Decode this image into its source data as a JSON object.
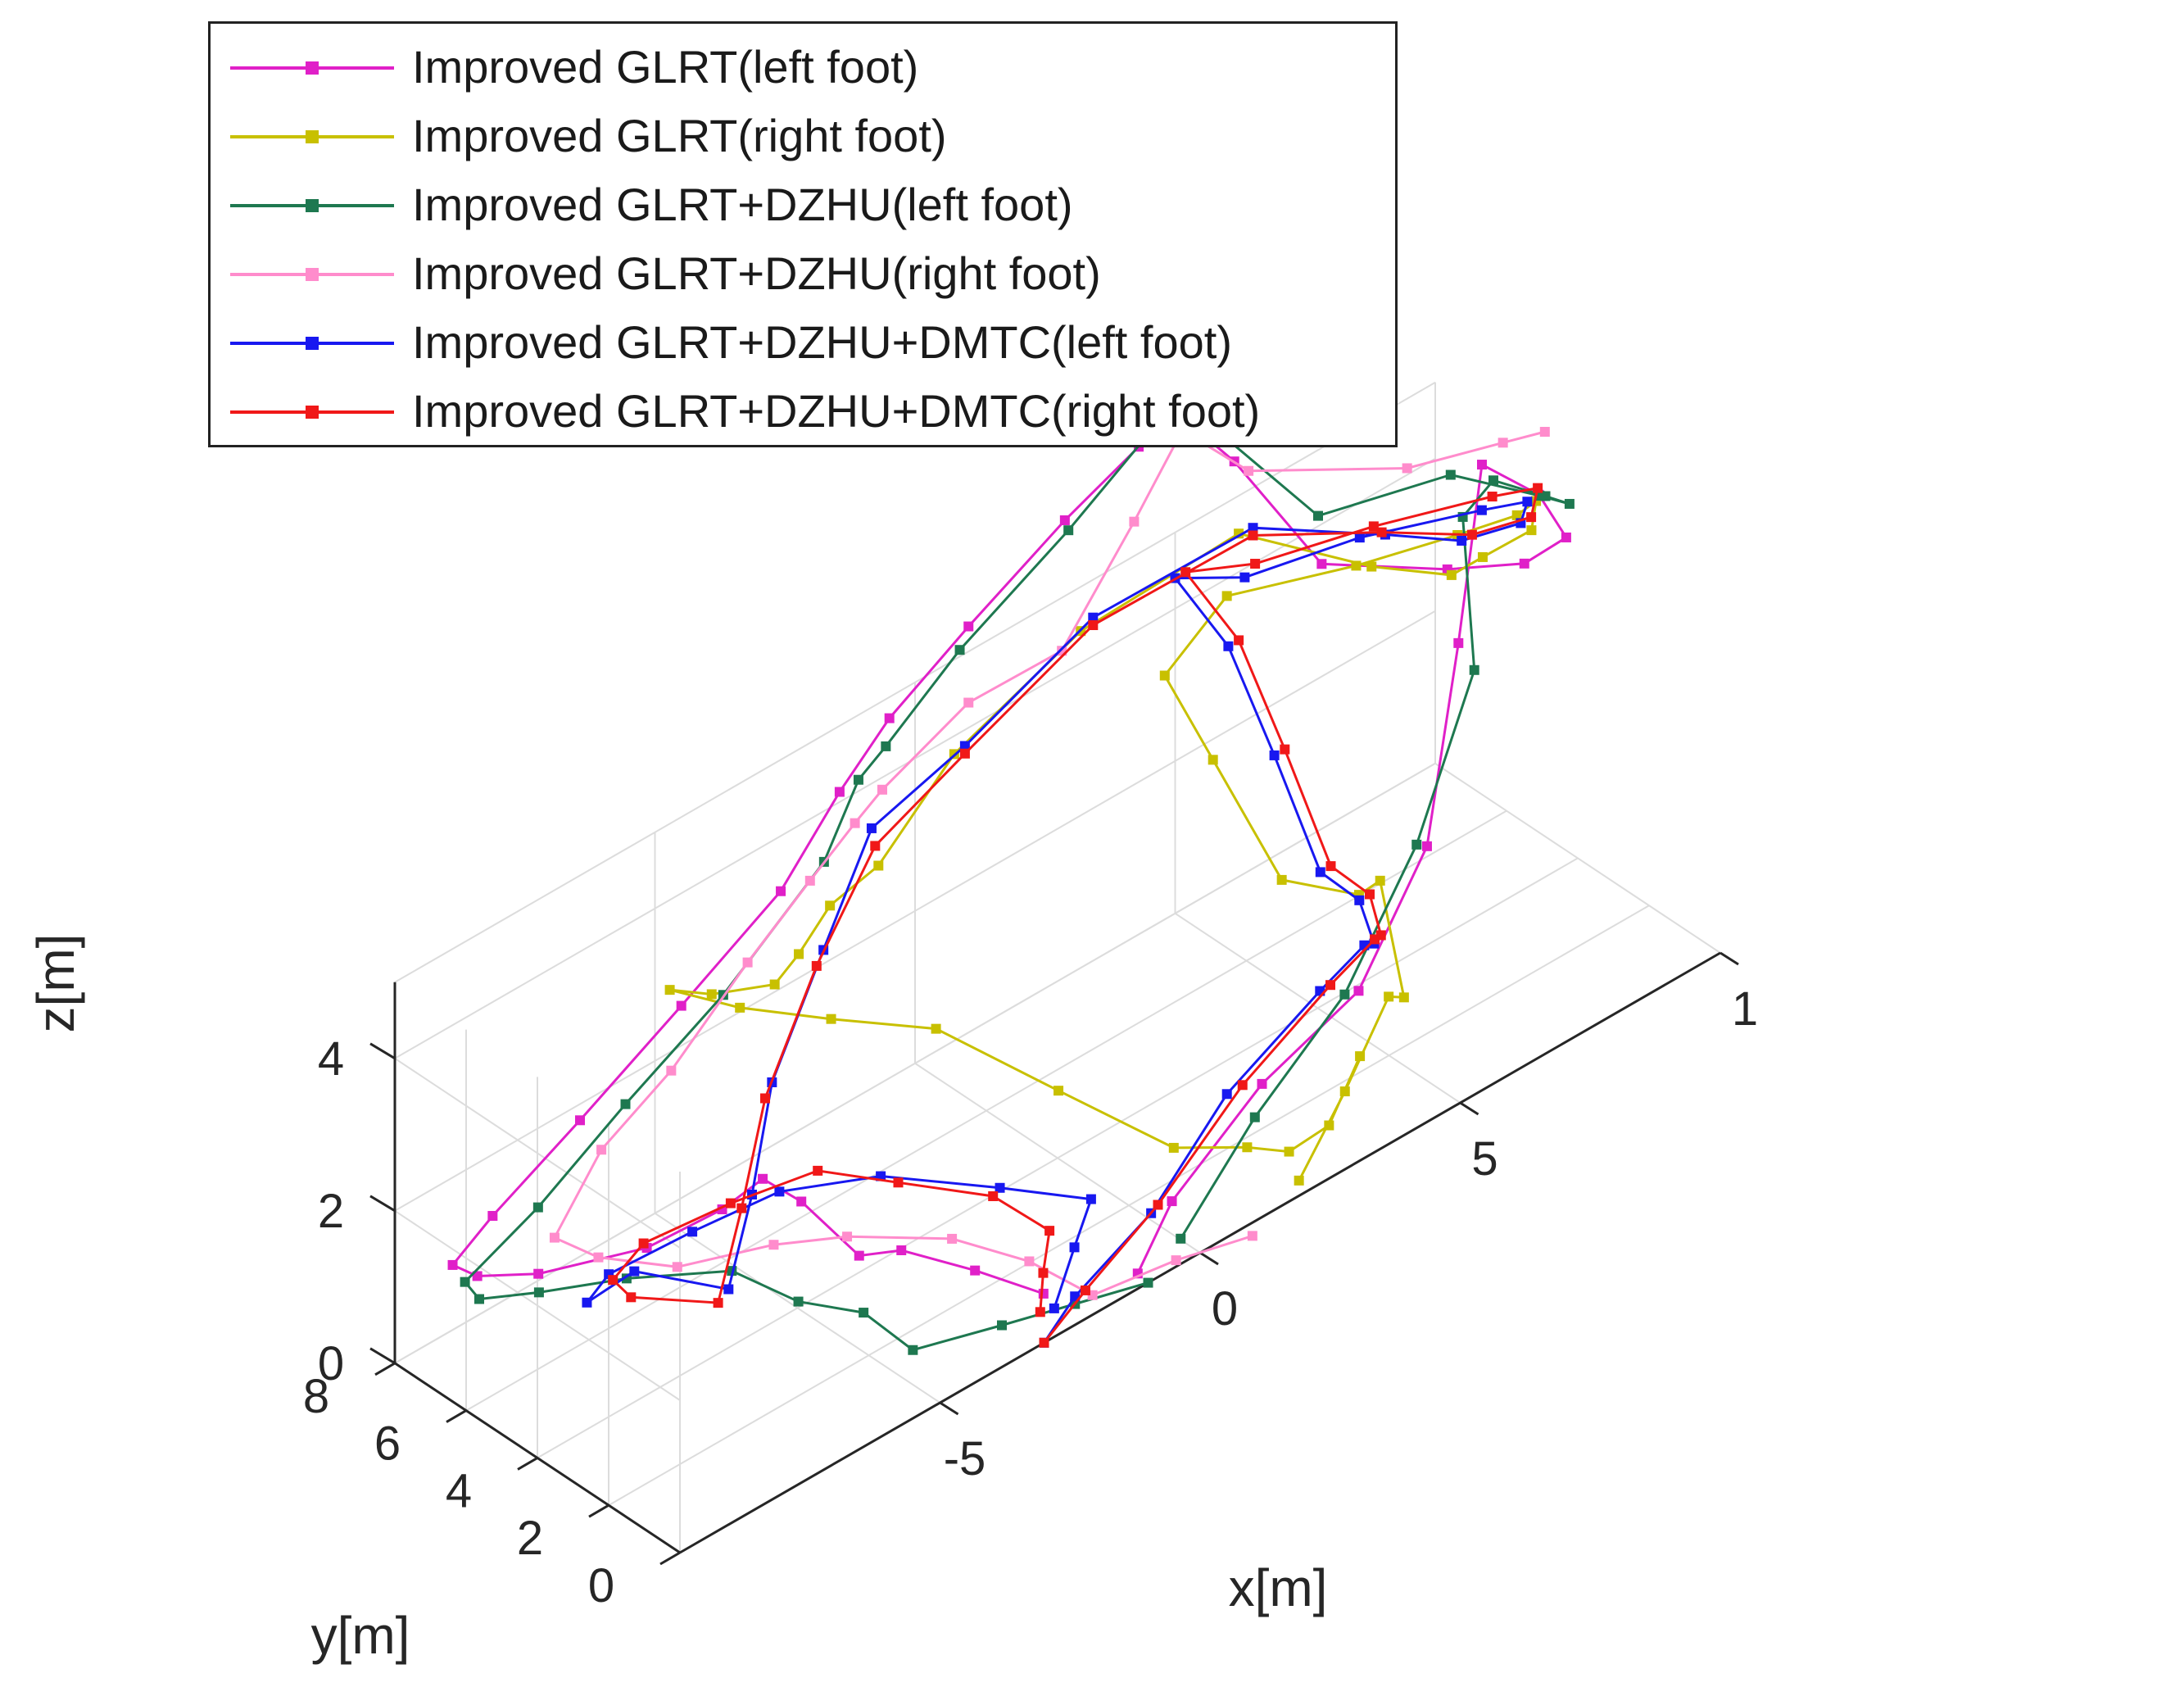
{
  "chart_data": {
    "type": "line3d",
    "title": "",
    "xlabel": "x[m]",
    "ylabel": "y[m]",
    "zlabel": "z[m]",
    "xticks": [
      "-5",
      "0",
      "5",
      "1"
    ],
    "yticks": [
      "0",
      "2",
      "4",
      "6",
      "8"
    ],
    "zticks": [
      "0",
      "2",
      "4"
    ],
    "xlim": [
      -10,
      10
    ],
    "ylim": [
      0,
      8
    ],
    "zlim": [
      0,
      5
    ],
    "grid": true,
    "legend_position": "top-left",
    "series": [
      {
        "name": "Improved GLRT(left foot)",
        "color": "#e020c8",
        "points": [
          [
            -2.6,
            0.6,
            0.3
          ],
          [
            -3.3,
            1.5,
            0.6
          ],
          [
            -4.1,
            2.4,
            0.9
          ],
          [
            -4.5,
            3.0,
            0.8
          ],
          [
            -5.2,
            3.6,
            1.6
          ],
          [
            -5.6,
            4.1,
            1.9
          ],
          [
            -5.9,
            4.8,
            1.4
          ],
          [
            -6.8,
            5.6,
            1.0
          ],
          [
            -8.2,
            6.6,
            0.9
          ],
          [
            -9.1,
            7.0,
            1.1
          ],
          [
            -9.3,
            7.4,
            1.2
          ],
          [
            -8.6,
            7.3,
            1.6
          ],
          [
            -7.4,
            6.6,
            2.6
          ],
          [
            -6.0,
            5.8,
            3.8
          ],
          [
            -4.5,
            5.2,
            4.9
          ],
          [
            -3.3,
            5.3,
            5.7
          ],
          [
            -2.0,
            5.8,
            6.0
          ],
          [
            0.0,
            6.5,
            6.2
          ],
          [
            2.4,
            7.3,
            6.4
          ],
          [
            4.3,
            8.0,
            6.4
          ],
          [
            5.0,
            8.1,
            6.3
          ],
          [
            5.4,
            8.0,
            6.2
          ],
          [
            6.0,
            7.8,
            5.6
          ],
          [
            7.2,
            7.1,
            4.0
          ],
          [
            9.0,
            6.2,
            3.5
          ],
          [
            10.0,
            5.5,
            3.4
          ],
          [
            10.6,
            5.2,
            3.6
          ],
          [
            9.8,
            4.8,
            4.6
          ],
          [
            8.5,
            4.5,
            5.6
          ],
          [
            7.5,
            3.7,
            3.9
          ],
          [
            5.8,
            2.1,
            2.4
          ],
          [
            3.8,
            1.1,
            1.6
          ],
          [
            1.6,
            0.6,
            1.4
          ],
          [
            -0.2,
            0.5,
            0.6
          ],
          [
            -1.2,
            0.0,
            0.2
          ]
        ]
      },
      {
        "name": "Improved GLRT(right foot)",
        "color": "#c8c000",
        "points": [
          [
            1.9,
            0.0,
            0.2
          ],
          [
            3.4,
            0.9,
            0.5
          ],
          [
            5.2,
            2.3,
            0.6
          ],
          [
            5.7,
            2.6,
            0.3
          ],
          [
            6.2,
            4.0,
            1.2
          ],
          [
            6.0,
            4.3,
            1.0
          ],
          [
            5.2,
            5.3,
            1.2
          ],
          [
            4.7,
            6.5,
            2.6
          ],
          [
            4.8,
            8.0,
            3.2
          ],
          [
            6.2,
            8.3,
            3.6
          ],
          [
            8.0,
            7.3,
            3.6
          ],
          [
            9.4,
            6.5,
            3.7
          ],
          [
            10.2,
            6.0,
            3.8
          ],
          [
            10.5,
            5.9,
            3.9
          ],
          [
            10.0,
            5.3,
            3.9
          ],
          [
            9.2,
            5.5,
            3.8
          ],
          [
            8.6,
            5.5,
            3.8
          ],
          [
            7.2,
            5.7,
            4.4
          ],
          [
            5.4,
            6.8,
            5.2
          ],
          [
            2.5,
            7.0,
            5.0
          ],
          [
            0.0,
            6.9,
            4.4
          ],
          [
            -1.8,
            6.4,
            3.8
          ],
          [
            -2.8,
            6.3,
            3.7
          ],
          [
            -3.4,
            6.3,
            3.3
          ],
          [
            -4.0,
            6.1,
            3.2
          ],
          [
            -4.8,
            6.7,
            3.2
          ],
          [
            -5.4,
            7.0,
            3.4
          ],
          [
            -4.6,
            6.2,
            3.1
          ],
          [
            -3.6,
            5.1,
            2.9
          ],
          [
            -2.2,
            4.2,
            2.5
          ],
          [
            -0.6,
            3.1,
            1.4
          ],
          [
            1.0,
            2.2,
            0.3
          ],
          [
            2.0,
            1.6,
            0.1
          ],
          [
            2.6,
            1.3,
            -0.1
          ],
          [
            3.3,
            1.2,
            0.0
          ],
          [
            4.1,
            1.5,
            0.5
          ]
        ]
      },
      {
        "name": "Improved GLRT+DZHU(left foot)",
        "color": "#1e7850",
        "points": [
          [
            -1.0,
            0.0,
            0.0
          ],
          [
            -2.2,
            0.3,
            0.1
          ],
          [
            -3.4,
            0.6,
            0.2
          ],
          [
            -4.7,
            1.2,
            0.2
          ],
          [
            -5.1,
            2.0,
            0.6
          ],
          [
            -5.6,
            3.1,
            0.6
          ],
          [
            -6.4,
            3.8,
            1.1
          ],
          [
            -7.6,
            5.0,
            1.1
          ],
          [
            -8.6,
            6.0,
            1.0
          ],
          [
            -9.2,
            6.8,
            0.9
          ],
          [
            -9.2,
            7.2,
            1.0
          ],
          [
            -8.0,
            6.9,
            1.6
          ],
          [
            -6.8,
            6.2,
            2.7
          ],
          [
            -5.4,
            5.5,
            3.8
          ],
          [
            -3.6,
            5.3,
            4.9
          ],
          [
            -2.8,
            5.5,
            5.6
          ],
          [
            -2.0,
            5.9,
            5.6
          ],
          [
            -0.1,
            6.6,
            5.9
          ],
          [
            2.4,
            7.2,
            6.3
          ],
          [
            4.3,
            7.9,
            6.5
          ],
          [
            5.0,
            8.0,
            6.3
          ],
          [
            5.6,
            7.8,
            6.2
          ],
          [
            7.2,
            7.2,
            4.6
          ],
          [
            9.2,
            6.4,
            4.6
          ],
          [
            10.5,
            5.8,
            4.0
          ],
          [
            10.8,
            5.4,
            3.9
          ],
          [
            10.2,
            5.2,
            4.3
          ],
          [
            9.2,
            5.2,
            4.9
          ],
          [
            8.2,
            4.6,
            5.0
          ],
          [
            7.6,
            3.4,
            3.6
          ],
          [
            5.6,
            2.1,
            2.5
          ],
          [
            3.6,
            1.2,
            1.6
          ],
          [
            1.6,
            0.8,
            0.9
          ],
          [
            -0.1,
            0.4,
            0.1
          ]
        ]
      },
      {
        "name": "Improved GLRT+DZHU(right foot)",
        "color": "#ff8ccc",
        "points": [
          [
            0.8,
            -0.3,
            0.0
          ],
          [
            -0.6,
            -0.2,
            0.2
          ],
          [
            -2.0,
            0.1,
            0.2
          ],
          [
            -2.6,
            1.0,
            0.6
          ],
          [
            -3.4,
            2.0,
            0.9
          ],
          [
            -4.8,
            2.9,
            1.2
          ],
          [
            -5.8,
            3.5,
            1.3
          ],
          [
            -6.9,
            4.6,
            1.1
          ],
          [
            -7.8,
            5.5,
            1.3
          ],
          [
            -8.3,
            6.0,
            1.6
          ],
          [
            -7.4,
            6.0,
            2.4
          ],
          [
            -6.4,
            5.5,
            3.2
          ],
          [
            -5.0,
            5.4,
            4.1
          ],
          [
            -3.8,
            5.4,
            4.7
          ],
          [
            -2.8,
            5.6,
            5.0
          ],
          [
            -2.0,
            6.0,
            5.0
          ],
          [
            0.0,
            6.5,
            5.2
          ],
          [
            2.0,
            6.8,
            5.0
          ],
          [
            3.8,
            7.4,
            5.8
          ],
          [
            5.0,
            7.8,
            6.4
          ],
          [
            6.0,
            7.4,
            5.6
          ],
          [
            8.5,
            6.6,
            4.9
          ],
          [
            10.0,
            6.1,
            4.8
          ],
          [
            10.6,
            5.8,
            4.8
          ]
        ]
      },
      {
        "name": "Improved GLRT+DZHU+DMTC(left foot)",
        "color": "#1818f0",
        "points": [
          [
            -3.0,
            0.0,
            0.0
          ],
          [
            -2.2,
            0.3,
            0.2
          ],
          [
            -0.6,
            0.5,
            0.6
          ],
          [
            1.2,
            1.0,
            1.3
          ],
          [
            3.4,
            1.6,
            1.6
          ],
          [
            4.8,
            2.4,
            1.4
          ],
          [
            5.4,
            3.0,
            1.0
          ],
          [
            5.8,
            4.0,
            1.1
          ],
          [
            5.6,
            4.8,
            1.3
          ],
          [
            5.4,
            5.8,
            2.6
          ],
          [
            5.2,
            6.8,
            3.8
          ],
          [
            5.0,
            8.0,
            4.4
          ],
          [
            6.2,
            7.8,
            4.0
          ],
          [
            8.0,
            7.2,
            4.0
          ],
          [
            9.8,
            6.4,
            3.9
          ],
          [
            10.4,
            6.0,
            3.9
          ],
          [
            10.0,
            5.6,
            3.9
          ],
          [
            9.0,
            5.8,
            4.0
          ],
          [
            7.6,
            5.9,
            4.6
          ],
          [
            5.4,
            6.4,
            5.4
          ],
          [
            2.6,
            6.8,
            5.2
          ],
          [
            0.0,
            6.6,
            4.6
          ],
          [
            -2.0,
            6.3,
            4.4
          ],
          [
            -3.2,
            5.9,
            3.4
          ],
          [
            -4.6,
            5.3,
            2.4
          ],
          [
            -5.6,
            4.4,
            1.6
          ],
          [
            -6.6,
            3.6,
            1.0
          ],
          [
            -8.0,
            4.2,
            1.6
          ],
          [
            -8.5,
            4.8,
            1.2
          ],
          [
            -7.6,
            5.5,
            1.0
          ],
          [
            -6.2,
            5.2,
            1.1
          ],
          [
            -4.8,
            4.8,
            1.2
          ],
          [
            -3.4,
            4.0,
            1.1
          ],
          [
            -2.0,
            2.7,
            0.8
          ],
          [
            -1.0,
            1.6,
            0.6
          ],
          [
            -1.8,
            0.9,
            0.5
          ],
          [
            -2.6,
            0.3,
            0.2
          ]
        ]
      },
      {
        "name": "Improved GLRT+DZHU+DMTC(right foot)",
        "color": "#f01818",
        "points": [
          [
            -3.0,
            0.0,
            0.0
          ],
          [
            -2.0,
            0.3,
            0.2
          ],
          [
            -0.4,
            0.6,
            0.6
          ],
          [
            1.5,
            1.0,
            1.3
          ],
          [
            3.6,
            1.6,
            1.6
          ],
          [
            5.0,
            2.4,
            1.4
          ],
          [
            5.6,
            3.1,
            1.0
          ],
          [
            6.0,
            4.0,
            1.1
          ],
          [
            5.8,
            4.8,
            1.3
          ],
          [
            5.6,
            5.8,
            2.6
          ],
          [
            5.4,
            6.8,
            3.8
          ],
          [
            5.2,
            8.0,
            4.4
          ],
          [
            6.4,
            7.8,
            4.1
          ],
          [
            8.2,
            7.1,
            4.1
          ],
          [
            10.0,
            6.4,
            4.0
          ],
          [
            10.6,
            6.0,
            4.0
          ],
          [
            10.2,
            5.6,
            3.9
          ],
          [
            9.2,
            5.8,
            4.0
          ],
          [
            7.6,
            6.0,
            4.6
          ],
          [
            5.4,
            6.4,
            5.3
          ],
          [
            2.6,
            6.8,
            5.1
          ],
          [
            0.0,
            6.6,
            4.5
          ],
          [
            -2.0,
            6.2,
            4.2
          ],
          [
            -3.4,
            5.8,
            3.3
          ],
          [
            -4.8,
            5.2,
            2.3
          ],
          [
            -5.8,
            4.4,
            1.5
          ],
          [
            -6.8,
            3.6,
            0.9
          ],
          [
            -8.2,
            4.0,
            1.4
          ],
          [
            -8.0,
            4.8,
            1.3
          ],
          [
            -7.0,
            5.4,
            1.2
          ],
          [
            -5.6,
            5.0,
            1.3
          ],
          [
            -4.2,
            4.6,
            1.3
          ],
          [
            -3.2,
            3.8,
            1.0
          ],
          [
            -2.2,
            2.6,
            0.8
          ],
          [
            -1.8,
            1.6,
            0.5
          ],
          [
            -2.4,
            0.9,
            0.4
          ],
          [
            -2.8,
            0.4,
            0.2
          ]
        ]
      }
    ]
  }
}
